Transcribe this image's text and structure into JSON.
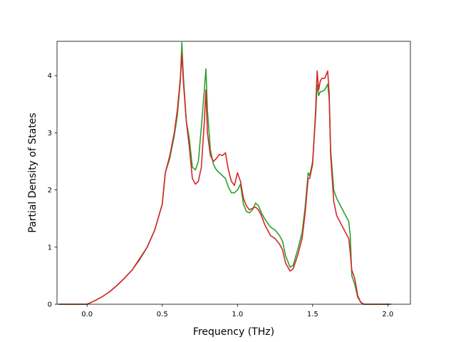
{
  "chart_data": {
    "type": "line",
    "title": "",
    "xlabel": "Frequency (THz)",
    "ylabel": "Partial Density of States",
    "xlim": [
      -0.2,
      2.15
    ],
    "ylim": [
      0,
      4.6
    ],
    "xticks": [
      0.0,
      0.5,
      1.0,
      1.5,
      2.0
    ],
    "xtick_labels": [
      "0.0",
      "0.5",
      "1.0",
      "1.5",
      "2.0"
    ],
    "yticks": [
      0,
      1,
      2,
      3,
      4
    ],
    "ytick_labels": [
      "0",
      "1",
      "2",
      "3",
      "4"
    ],
    "grid": false,
    "legend": "none",
    "series": [
      {
        "color": "#2ca02c",
        "x": [
          -0.19,
          0.0,
          0.05,
          0.1,
          0.15,
          0.2,
          0.25,
          0.3,
          0.35,
          0.4,
          0.45,
          0.5,
          0.52,
          0.55,
          0.58,
          0.6,
          0.62,
          0.63,
          0.64,
          0.66,
          0.68,
          0.69,
          0.7,
          0.72,
          0.74,
          0.76,
          0.78,
          0.79,
          0.8,
          0.82,
          0.84,
          0.86,
          0.88,
          0.9,
          0.92,
          0.94,
          0.96,
          0.98,
          1.0,
          1.02,
          1.04,
          1.06,
          1.08,
          1.1,
          1.12,
          1.14,
          1.16,
          1.18,
          1.2,
          1.22,
          1.25,
          1.28,
          1.3,
          1.32,
          1.35,
          1.37,
          1.4,
          1.43,
          1.45,
          1.47,
          1.48,
          1.5,
          1.52,
          1.53,
          1.54,
          1.55,
          1.56,
          1.58,
          1.6,
          1.61,
          1.62,
          1.64,
          1.66,
          1.68,
          1.7,
          1.72,
          1.74,
          1.75,
          1.76,
          1.78,
          1.8,
          1.82,
          1.84,
          2.02
        ],
        "y": [
          0.0,
          0.0,
          0.06,
          0.13,
          0.22,
          0.33,
          0.46,
          0.6,
          0.78,
          1.0,
          1.3,
          1.75,
          2.3,
          2.55,
          2.95,
          3.3,
          3.9,
          4.58,
          4.0,
          3.2,
          2.9,
          2.65,
          2.4,
          2.35,
          2.5,
          3.1,
          3.75,
          4.12,
          3.4,
          2.7,
          2.45,
          2.35,
          2.3,
          2.25,
          2.2,
          2.05,
          1.95,
          1.95,
          2.0,
          2.1,
          1.75,
          1.62,
          1.6,
          1.65,
          1.77,
          1.72,
          1.6,
          1.5,
          1.42,
          1.35,
          1.3,
          1.2,
          1.1,
          0.85,
          0.65,
          0.68,
          0.95,
          1.25,
          1.7,
          2.3,
          2.25,
          2.5,
          3.3,
          3.85,
          3.65,
          3.72,
          3.72,
          3.75,
          3.85,
          3.6,
          2.7,
          2.0,
          1.85,
          1.75,
          1.65,
          1.55,
          1.45,
          1.2,
          0.5,
          0.35,
          0.12,
          0.04,
          0.0,
          0.0
        ]
      },
      {
        "color": "#d62728",
        "x": [
          -0.19,
          0.0,
          0.05,
          0.1,
          0.15,
          0.2,
          0.25,
          0.3,
          0.35,
          0.4,
          0.45,
          0.5,
          0.52,
          0.55,
          0.58,
          0.6,
          0.62,
          0.63,
          0.64,
          0.66,
          0.68,
          0.7,
          0.72,
          0.74,
          0.76,
          0.78,
          0.79,
          0.8,
          0.82,
          0.84,
          0.86,
          0.88,
          0.9,
          0.92,
          0.94,
          0.96,
          0.98,
          1.0,
          1.02,
          1.04,
          1.06,
          1.08,
          1.1,
          1.12,
          1.14,
          1.16,
          1.18,
          1.2,
          1.22,
          1.25,
          1.28,
          1.3,
          1.32,
          1.35,
          1.37,
          1.4,
          1.43,
          1.45,
          1.47,
          1.48,
          1.5,
          1.52,
          1.53,
          1.54,
          1.55,
          1.56,
          1.58,
          1.6,
          1.61,
          1.62,
          1.64,
          1.66,
          1.68,
          1.7,
          1.72,
          1.74,
          1.75,
          1.76,
          1.78,
          1.8,
          1.82,
          1.84,
          2.02
        ],
        "y": [
          0.0,
          0.0,
          0.06,
          0.13,
          0.22,
          0.33,
          0.46,
          0.6,
          0.8,
          1.0,
          1.3,
          1.75,
          2.3,
          2.6,
          3.0,
          3.4,
          3.95,
          4.38,
          3.9,
          3.2,
          2.75,
          2.2,
          2.1,
          2.15,
          2.4,
          3.2,
          3.75,
          3.0,
          2.6,
          2.5,
          2.55,
          2.62,
          2.6,
          2.65,
          2.35,
          2.15,
          2.08,
          2.3,
          2.15,
          1.85,
          1.72,
          1.65,
          1.68,
          1.7,
          1.65,
          1.55,
          1.4,
          1.3,
          1.2,
          1.15,
          1.05,
          0.95,
          0.72,
          0.58,
          0.62,
          0.85,
          1.15,
          1.6,
          2.2,
          2.2,
          2.45,
          3.4,
          4.08,
          3.75,
          3.9,
          3.95,
          3.95,
          4.08,
          3.7,
          2.6,
          1.8,
          1.55,
          1.45,
          1.35,
          1.25,
          1.15,
          0.9,
          0.6,
          0.45,
          0.15,
          0.03,
          0.0,
          0.0
        ]
      }
    ]
  }
}
